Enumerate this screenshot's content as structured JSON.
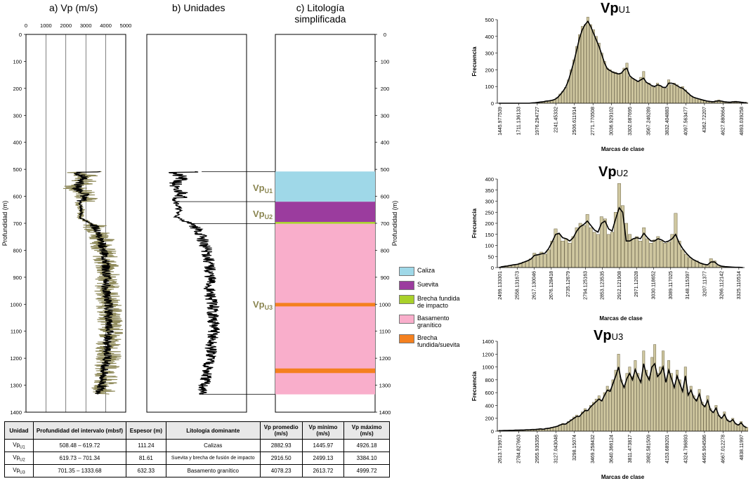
{
  "panel_titles": {
    "a": "a) Vp (m/s)",
    "b": "b) Unidades",
    "c_line1": "c) Litología",
    "c_line2": "simplificada"
  },
  "depth_axis_label": "Profundidad (m)",
  "vp_axis_ticks": [
    "0",
    "1000",
    "2000",
    "3000",
    "4000",
    "5000"
  ],
  "depth_ticks": [
    "0",
    "100",
    "200",
    "300",
    "400",
    "500",
    "600",
    "700",
    "800",
    "900",
    "1000",
    "1100",
    "1200",
    "1300",
    "1400"
  ],
  "unit_labels": [
    {
      "base": "Vp",
      "sub": "U1"
    },
    {
      "base": "Vp",
      "sub": "U2"
    },
    {
      "base": "Vp",
      "sub": "U3"
    }
  ],
  "colors": {
    "caliza": "#9fd8e8",
    "suevita": "#9b3c9e",
    "brecha_impacto": "#a9d12a",
    "basamento": "#f9aecb",
    "brecha_suevita": "#f4801f",
    "unit_label": "#8a8550",
    "vp_raw": "#8f8a5a",
    "bar_fill": "#cfc7a0",
    "bar_stroke": "#6f6748"
  },
  "legend": [
    {
      "label": "Caliza",
      "color": "#9fd8e8"
    },
    {
      "label": "Suevita",
      "color": "#9b3c9e"
    },
    {
      "label": "Brecha fundida de impacto",
      "color": "#a9d12a"
    },
    {
      "label": "Basamento granítico",
      "color": "#f9aecb"
    },
    {
      "label": "Brecha fundida/suevita",
      "color": "#f4801f"
    }
  ],
  "table": {
    "headers": [
      "Unidad",
      "Profundidad del intervalo (mbsf)",
      "Espesor (m)",
      "Litología dominante",
      "Vp promedio (m/s)",
      "Vp mínimo (m/s)",
      "Vp máximo (m/s)"
    ],
    "rows": [
      {
        "unit_base": "Vp",
        "unit_sub": "U1",
        "interval": "508.48 – 619.72",
        "thickness": "111.24",
        "lithology": "Calizas",
        "vp_mean": "2882.93",
        "vp_min": "1445.97",
        "vp_max": "4926.18"
      },
      {
        "unit_base": "Vp",
        "unit_sub": "U2",
        "interval": "619.73 – 701.34",
        "thickness": "81.61",
        "lithology": "Suevita y brecha de fusión de impacto",
        "vp_mean": "2916.50",
        "vp_min": "2499.13",
        "vp_max": "3384.10"
      },
      {
        "unit_base": "Vp",
        "unit_sub": "U3",
        "interval": "701.35 – 1333.68",
        "thickness": "632.33",
        "lithology": "Basamento granítico",
        "vp_mean": "4078.23",
        "vp_min": "2613.72",
        "vp_max": "4999.72"
      }
    ]
  },
  "chart_data": [
    {
      "type": "line",
      "title": "a) Vp (m/s)",
      "xlabel": "",
      "ylabel": "Profundidad (m)",
      "xlim": [
        0,
        5000
      ],
      "ylim": [
        1400,
        0
      ],
      "depth_range": [
        508.48,
        1333.68
      ],
      "series": [
        {
          "name": "",
          "color": "#8f8a5a",
          "points": [
            [
              510,
              2600
            ],
            [
              530,
              3100
            ],
            [
              550,
              2800
            ],
            [
              570,
              2500
            ],
            [
              590,
              3200
            ],
            [
              610,
              3000
            ],
            [
              625,
              2600
            ],
            [
              650,
              2800
            ],
            [
              680,
              2700
            ],
            [
              705,
              3400
            ],
            [
              750,
              3800
            ],
            [
              800,
              3900
            ],
            [
              850,
              4000
            ],
            [
              900,
              4100
            ],
            [
              950,
              4050
            ],
            [
              1000,
              4150
            ],
            [
              1050,
              4200
            ],
            [
              1100,
              4250
            ],
            [
              1150,
              4100
            ],
            [
              1200,
              4150
            ],
            [
              1250,
              4000
            ],
            [
              1300,
              3900
            ],
            [
              1330,
              3800
            ]
          ]
        },
        {
          "name": "",
          "color": "#000000",
          "points": [
            [
              510,
              2500
            ],
            [
              530,
              2900
            ],
            [
              550,
              2700
            ],
            [
              570,
              2500
            ],
            [
              590,
              3000
            ],
            [
              610,
              2800
            ],
            [
              625,
              2700
            ],
            [
              650,
              2800
            ],
            [
              680,
              2700
            ],
            [
              705,
              3400
            ],
            [
              750,
              3700
            ],
            [
              800,
              3900
            ],
            [
              850,
              4000
            ],
            [
              900,
              4050
            ],
            [
              950,
              4000
            ],
            [
              1000,
              4150
            ],
            [
              1050,
              4150
            ],
            [
              1100,
              4200
            ],
            [
              1150,
              4050
            ],
            [
              1200,
              4100
            ],
            [
              1250,
              3900
            ],
            [
              1300,
              3800
            ],
            [
              1330,
              3700
            ]
          ]
        }
      ]
    },
    {
      "type": "table",
      "title": "c) Litología simplificada",
      "ylabel": "Profundidad (m)",
      "ylim": [
        1400,
        0
      ],
      "layers": [
        {
          "name": "Caliza",
          "top": 508,
          "bottom": 620,
          "color": "#9fd8e8"
        },
        {
          "name": "Suevita",
          "top": 620,
          "bottom": 695,
          "color": "#9b3c9e"
        },
        {
          "name": "Brecha fundida de impacto",
          "top": 695,
          "bottom": 702,
          "color": "#a9d12a"
        },
        {
          "name": "Basamento granítico",
          "top": 702,
          "bottom": 1334,
          "color": "#f9aecb"
        },
        {
          "name": "Brecha fundida/suevita",
          "top": 995,
          "bottom": 1008,
          "color": "#f4801f"
        },
        {
          "name": "Brecha fundida/suevita",
          "top": 1238,
          "bottom": 1255,
          "color": "#f4801f"
        }
      ]
    },
    {
      "type": "bar",
      "title": "VpU1",
      "title_base": "Vp",
      "title_sub": "U1",
      "xlabel": "Marcas de clase",
      "ylabel": "Frecuencia",
      "ylim": [
        0,
        500
      ],
      "yticks": [
        "0",
        "100",
        "200",
        "300",
        "400",
        "500"
      ],
      "tick_labels": [
        "1445.977539",
        "1711.136133",
        "1976.294727",
        "2241.45332",
        "2506.611914",
        "2771.770508",
        "3036.929102",
        "3302.087695",
        "3567.246289",
        "3832.404883",
        "4097.563477",
        "4362.72207",
        "4627.880664",
        "4893.039258"
      ],
      "values": [
        0,
        0,
        0,
        0,
        0,
        0,
        0,
        0,
        0,
        0,
        0,
        0,
        2,
        3,
        5,
        8,
        10,
        14,
        15,
        18,
        22,
        35,
        55,
        70,
        95,
        140,
        200,
        260,
        340,
        410,
        460,
        470,
        515,
        470,
        440,
        400,
        360,
        300,
        250,
        210,
        200,
        190,
        185,
        175,
        180,
        210,
        240,
        160,
        150,
        140,
        130,
        155,
        190,
        125,
        120,
        100,
        95,
        120,
        105,
        95,
        90,
        140,
        110,
        120,
        110,
        90,
        100,
        80,
        60,
        45,
        35,
        30,
        25,
        20,
        15,
        12,
        10,
        8,
        15,
        20,
        12,
        8,
        6,
        5,
        10,
        12,
        8,
        6,
        4,
        3
      ],
      "line": [
        0,
        0,
        0,
        0,
        0,
        0,
        0,
        0,
        0,
        0,
        0,
        0,
        2,
        3,
        5,
        7,
        9,
        12,
        14,
        17,
        22,
        32,
        50,
        70,
        95,
        135,
        190,
        250,
        320,
        390,
        440,
        470,
        490,
        460,
        420,
        380,
        340,
        290,
        240,
        205,
        195,
        185,
        180,
        175,
        180,
        200,
        210,
        165,
        150,
        140,
        130,
        140,
        150,
        125,
        115,
        105,
        100,
        110,
        105,
        95,
        95,
        120,
        120,
        115,
        105,
        95,
        90,
        75,
        60,
        45,
        35,
        30,
        25,
        20,
        16,
        12,
        10,
        9,
        12,
        14,
        12,
        9,
        7,
        6,
        8,
        9,
        8,
        6,
        4,
        3
      ]
    },
    {
      "type": "bar",
      "title": "VpU2",
      "title_base": "Vp",
      "title_sub": "U2",
      "xlabel": "Marcas de clase",
      "ylabel": "Frecuencia",
      "ylim": [
        0,
        400
      ],
      "yticks": [
        "0",
        "50",
        "100",
        "150",
        "200",
        "250",
        "300",
        "350",
        "400"
      ],
      "tick_labels": [
        "2499.133301",
        "2558.131673",
        "2617.130046",
        "2676.128418",
        "2735.12679",
        "2794.125163",
        "2853.123535",
        "2912.121908",
        "2971.12028",
        "3030.118652",
        "3089.117025",
        "3148.115397",
        "3207.11377",
        "3266.112142",
        "3325.110514"
      ],
      "values": [
        0,
        5,
        8,
        10,
        12,
        15,
        20,
        25,
        30,
        40,
        65,
        55,
        70,
        60,
        80,
        120,
        175,
        150,
        120,
        130,
        110,
        140,
        180,
        200,
        190,
        240,
        180,
        160,
        150,
        230,
        220,
        150,
        160,
        250,
        380,
        280,
        200,
        150,
        130,
        140,
        120,
        180,
        130,
        110,
        125,
        140,
        120,
        110,
        115,
        150,
        245,
        120,
        80,
        60,
        45,
        35,
        30,
        20,
        15,
        10,
        40,
        30,
        10,
        5,
        5,
        3,
        2,
        2,
        1,
        0
      ],
      "line": [
        0,
        4,
        6,
        9,
        12,
        14,
        18,
        24,
        30,
        38,
        55,
        58,
        62,
        65,
        85,
        115,
        150,
        155,
        135,
        130,
        120,
        135,
        165,
        185,
        195,
        210,
        190,
        170,
        160,
        200,
        210,
        175,
        165,
        220,
        270,
        250,
        120,
        120,
        130,
        135,
        130,
        155,
        135,
        120,
        120,
        130,
        125,
        115,
        120,
        130,
        150,
        110,
        85,
        65,
        48,
        36,
        28,
        20,
        15,
        12,
        25,
        25,
        12,
        6,
        4,
        3,
        2,
        1,
        1,
        0
      ]
    },
    {
      "type": "bar",
      "title": "VpU3",
      "title_base": "Vp",
      "title_sub": "U3",
      "xlabel": "Marcas de clase",
      "ylabel": "Frecuencia",
      "ylim": [
        0,
        1400
      ],
      "yticks": [
        "0",
        "200",
        "400",
        "600",
        "800",
        "1000",
        "1200",
        "1400"
      ],
      "tick_labels": [
        "2613.719971",
        "2784.827663",
        "2955.935355",
        "3127.043048",
        "3298.15074",
        "3469.258432",
        "3640.366124",
        "3811.473817",
        "3982.581509",
        "4153.689201",
        "4324.796893",
        "4495.904586",
        "4667.012278",
        "4838.11997"
      ],
      "values": [
        10,
        8,
        12,
        10,
        15,
        12,
        18,
        15,
        20,
        18,
        25,
        22,
        28,
        25,
        35,
        40,
        30,
        45,
        50,
        60,
        70,
        80,
        100,
        120,
        110,
        150,
        180,
        220,
        250,
        230,
        300,
        350,
        320,
        400,
        450,
        500,
        550,
        480,
        600,
        700,
        650,
        800,
        950,
        1200,
        800,
        700,
        900,
        1000,
        850,
        1100,
        900,
        800,
        1250,
        950,
        850,
        1150,
        1350,
        900,
        1000,
        1250,
        800,
        1100,
        900,
        700,
        950,
        800,
        650,
        1000,
        600,
        700,
        550,
        500,
        650,
        450,
        400,
        550,
        350,
        300,
        400,
        250,
        200,
        300,
        180,
        150,
        200,
        120,
        100,
        150,
        80,
        60
      ],
      "line": [
        8,
        8,
        10,
        10,
        12,
        12,
        15,
        15,
        18,
        18,
        22,
        22,
        25,
        25,
        30,
        35,
        30,
        40,
        45,
        55,
        65,
        75,
        95,
        110,
        110,
        140,
        170,
        200,
        230,
        230,
        280,
        320,
        320,
        380,
        420,
        460,
        500,
        470,
        560,
        640,
        620,
        740,
        860,
        1000,
        780,
        680,
        820,
        900,
        800,
        960,
        850,
        760,
        1050,
        880,
        800,
        1000,
        1050,
        850,
        900,
        1000,
        760,
        950,
        820,
        680,
        860,
        740,
        620,
        860,
        560,
        640,
        520,
        470,
        580,
        420,
        380,
        480,
        330,
        290,
        360,
        240,
        200,
        260,
        170,
        145,
        180,
        115,
        95,
        130,
        75,
        55
      ]
    }
  ]
}
